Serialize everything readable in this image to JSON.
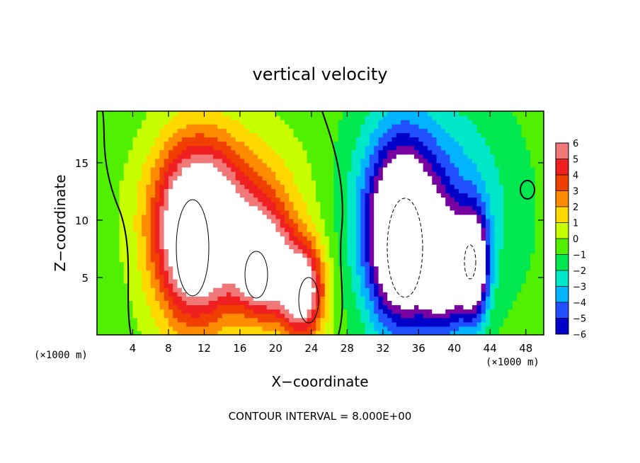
{
  "chart_data": {
    "type": "heatmap",
    "title": "vertical velocity",
    "xlabel": "X−coordinate",
    "ylabel": "Z−coordinate",
    "x_unit_left": "(×1000 m)",
    "x_unit_right": "(×1000 m)",
    "footer": "CONTOUR INTERVAL = 8.000E+00",
    "xlim": [
      0,
      50
    ],
    "ylim": [
      0,
      19.5
    ],
    "x_ticks": [
      4,
      8,
      12,
      16,
      20,
      24,
      28,
      32,
      36,
      40,
      44,
      48
    ],
    "x_tick_labels": [
      "4",
      "8",
      "12",
      "16",
      "20",
      "24",
      "28",
      "32",
      "36",
      "40",
      "44",
      "48"
    ],
    "y_ticks": [
      5,
      10,
      15
    ],
    "y_tick_labels": [
      "5",
      "10",
      "15"
    ],
    "colorbar": {
      "ticks": [
        6,
        5,
        4,
        3,
        2,
        1,
        0,
        -1,
        -2,
        -3,
        -4,
        -5,
        -6
      ],
      "tick_labels": [
        "6",
        "5",
        "4",
        "3",
        "2",
        "1",
        "0",
        "−1",
        "−2",
        "−3",
        "−4",
        "−5",
        "−6"
      ],
      "colors": [
        "#f07878",
        "#f02020",
        "#f04000",
        "#ff8c00",
        "#ffd800",
        "#c8ff00",
        "#50f000",
        "#00e850",
        "#00e8c8",
        "#00b4ff",
        "#2050ff",
        "#0000c8",
        "#7800a0"
      ]
    },
    "features": [
      {
        "sign": "up",
        "x": 11,
        "z": 8.5,
        "sx": 3.2,
        "sz": 5.5,
        "amp": 9
      },
      {
        "sign": "up",
        "x": 18.5,
        "z": 6,
        "sx": 2.2,
        "sz": 3.2,
        "amp": 8
      },
      {
        "sign": "up",
        "x": 23,
        "z": 3.8,
        "sx": 1.8,
        "sz": 3,
        "amp": 8
      },
      {
        "sign": "up",
        "x": 15,
        "z": 11,
        "sx": 5.5,
        "sz": 4.5,
        "amp": 4
      },
      {
        "sign": "down",
        "x": 34,
        "z": 8.5,
        "sx": 2.6,
        "sz": 5.5,
        "amp": 9
      },
      {
        "sign": "down",
        "x": 39,
        "z": 5.5,
        "sx": 1.8,
        "sz": 3.5,
        "amp": 7
      },
      {
        "sign": "down",
        "x": 42.2,
        "z": 6,
        "sx": 1.1,
        "sz": 3.2,
        "amp": 8
      },
      {
        "sign": "down",
        "x": 37,
        "z": 11,
        "sx": 6,
        "sz": 6.5,
        "amp": 4
      }
    ]
  }
}
